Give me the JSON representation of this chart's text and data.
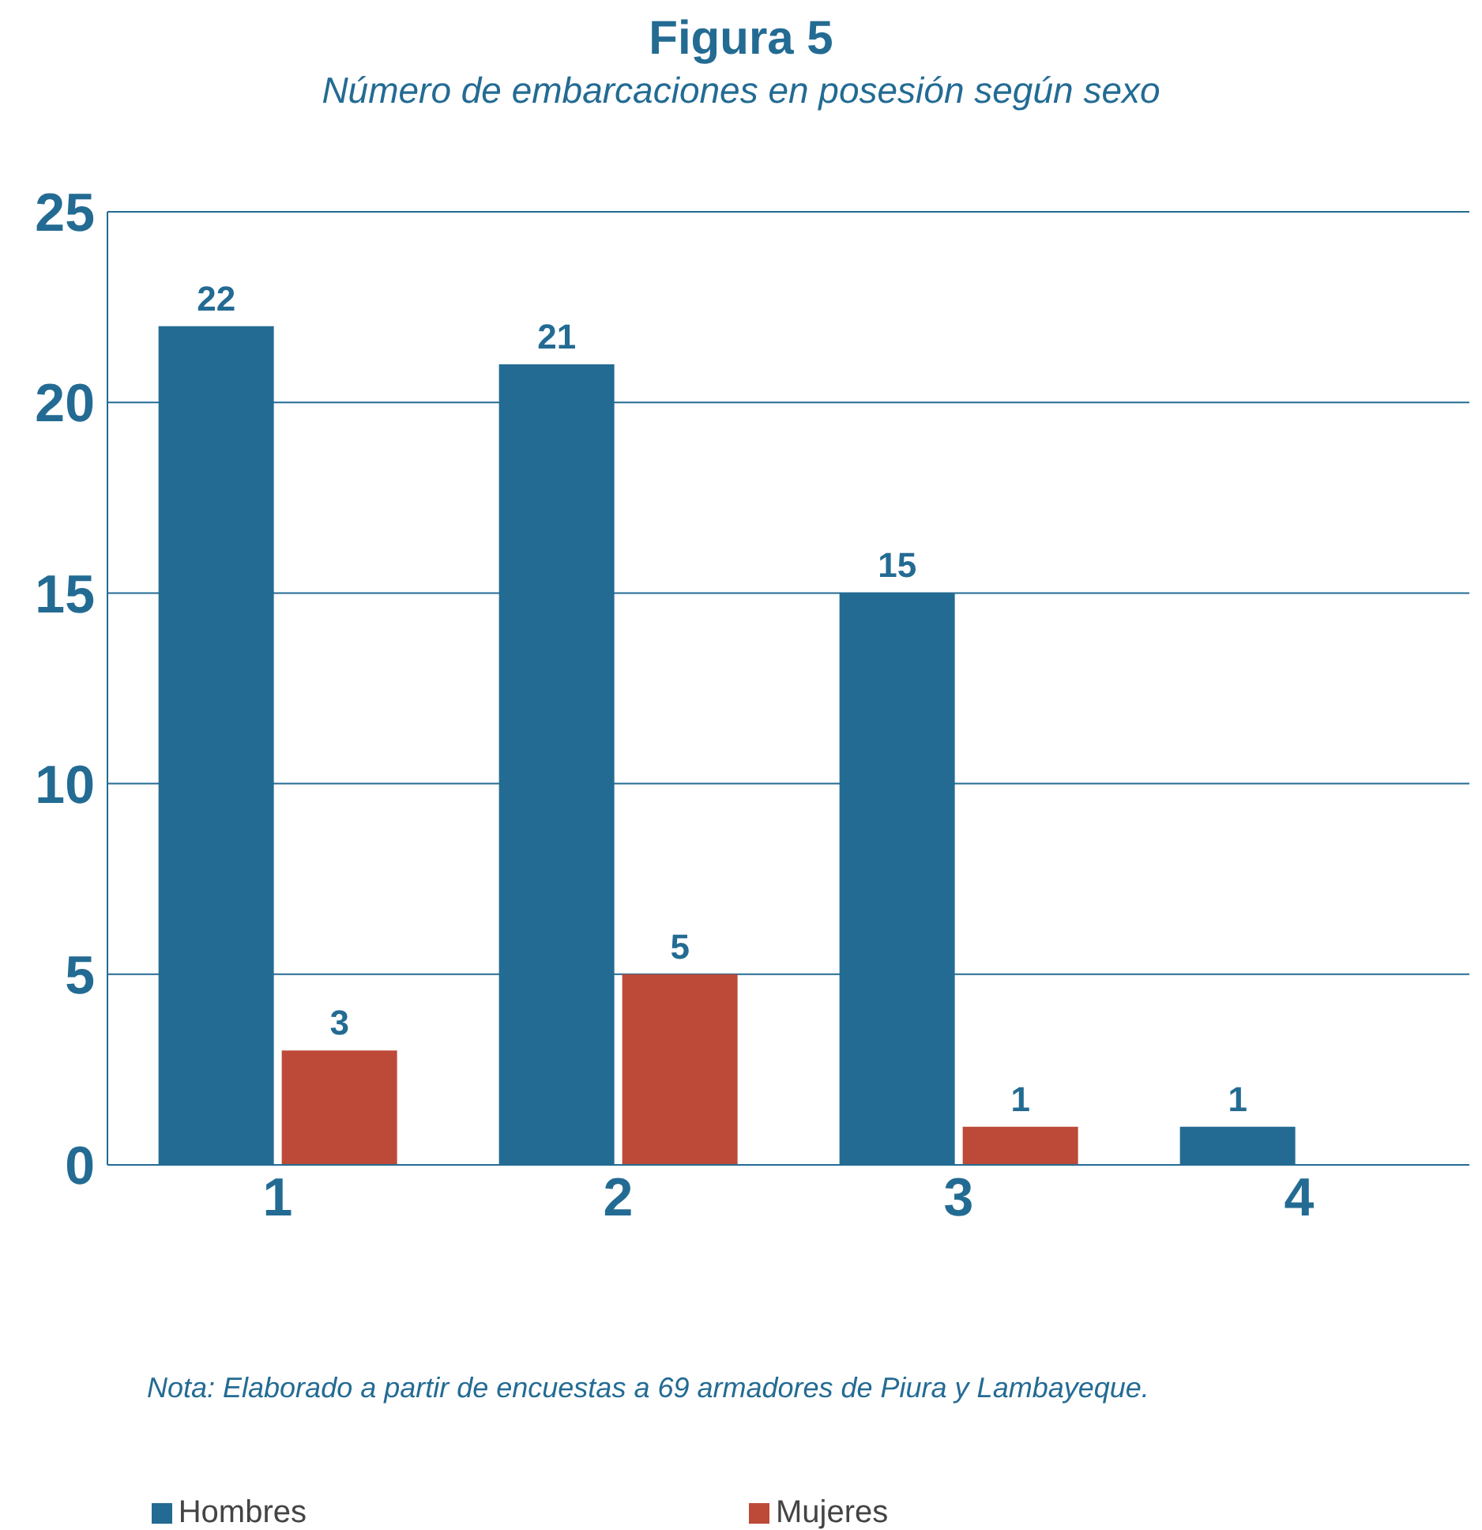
{
  "chart_data": {
    "type": "bar",
    "title": "Figura 5",
    "subtitle": "Número de embarcaciones en posesión según sexo",
    "categories": [
      "1",
      "2",
      "3",
      "4"
    ],
    "series": [
      {
        "name": "Hombres",
        "color": "#236b93",
        "values": [
          22,
          21,
          15,
          1
        ]
      },
      {
        "name": "Mujeres",
        "color": "#bd4a38",
        "values": [
          3,
          5,
          1,
          null
        ]
      }
    ],
    "ylim": [
      0,
      25
    ],
    "yticks": [
      0,
      5,
      10,
      15,
      20,
      25
    ],
    "grid": "y",
    "legend": "bottom",
    "data_labels": true,
    "annotations": [
      "Nota: Elaborado a partir de encuestas a 69 armadores de Piura y Lambayeque."
    ]
  }
}
